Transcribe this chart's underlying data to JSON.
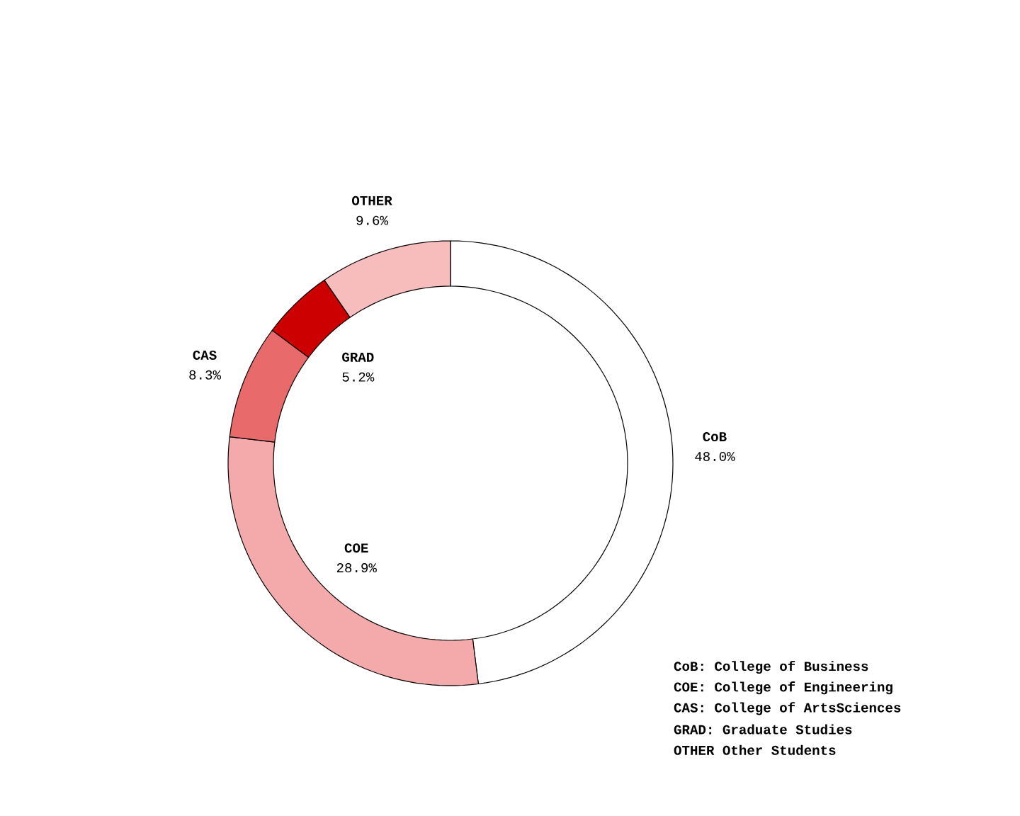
{
  "chart_data": {
    "type": "donut",
    "categories": [
      "CoB",
      "COE",
      "CAS",
      "GRAD",
      "OTHER"
    ],
    "values": [
      48.0,
      28.9,
      8.3,
      5.2,
      9.6
    ],
    "value_labels": [
      "48.0%",
      "28.9%",
      "8.3%",
      "5.2%",
      "9.6%"
    ],
    "colors": [
      "#ffffff",
      "#f4aaaa",
      "#e86a6a",
      "#cc0000",
      "#f7bcbc"
    ],
    "annotations": [
      "CoB: College of Business",
      "COE: College of Engineering",
      "CAS: College of ArtsSciences",
      "GRAD: Graduate Studies",
      "OTHER Other Students"
    ]
  }
}
